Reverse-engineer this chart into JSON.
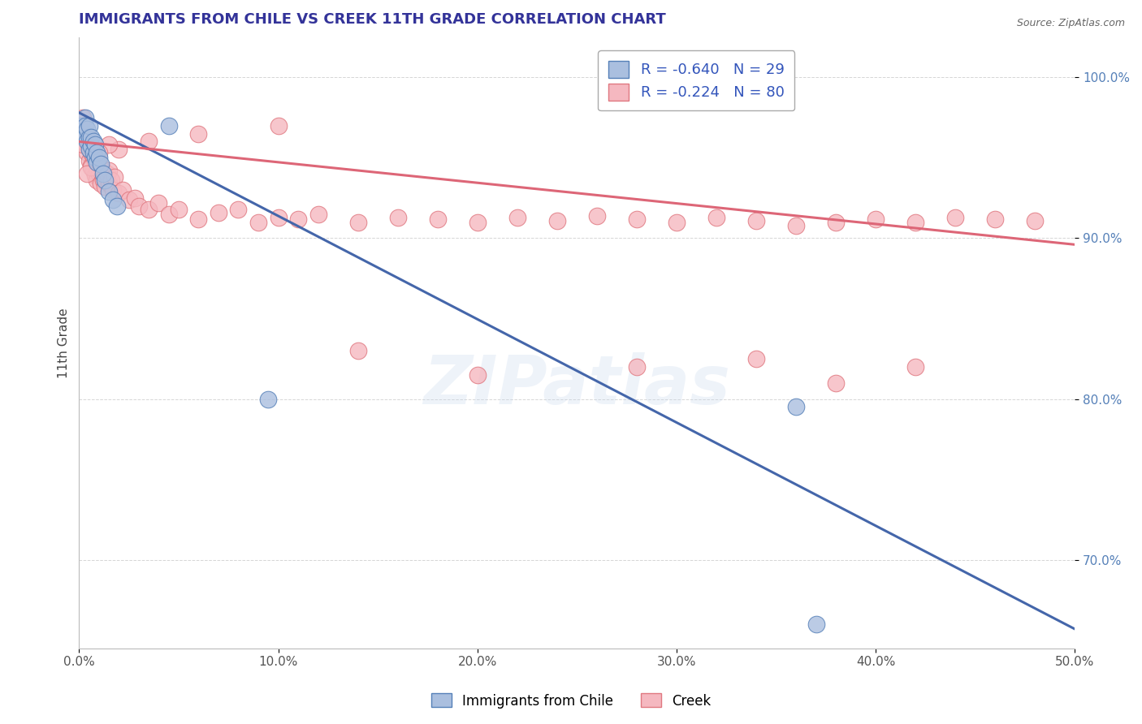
{
  "title": "IMMIGRANTS FROM CHILE VS CREEK 11TH GRADE CORRELATION CHART",
  "source_text": "Source: ZipAtlas.com",
  "ylabel": "11th Grade",
  "xlim": [
    0.0,
    0.5
  ],
  "ylim": [
    0.645,
    1.025
  ],
  "xticks": [
    0.0,
    0.1,
    0.2,
    0.3,
    0.4,
    0.5
  ],
  "xticklabels": [
    "0.0%",
    "10.0%",
    "20.0%",
    "30.0%",
    "40.0%",
    "50.0%"
  ],
  "yticks": [
    0.7,
    0.8,
    0.9,
    1.0
  ],
  "yticklabels": [
    "70.0%",
    "80.0%",
    "90.0%",
    "100.0%"
  ],
  "legend_r_blue": "-0.640",
  "legend_n_blue": "29",
  "legend_r_pink": "-0.224",
  "legend_n_pink": "80",
  "blue_fill": "#AABFDF",
  "blue_edge": "#5580B8",
  "pink_fill": "#F5B8C0",
  "pink_edge": "#E07880",
  "blue_line_color": "#4466AA",
  "pink_line_color": "#DD6677",
  "yaxis_label_color": "#5580B8",
  "watermark": "ZIPatlas",
  "blue_line_x0": 0.0,
  "blue_line_y0": 0.978,
  "blue_line_x1": 0.5,
  "blue_line_y1": 0.657,
  "pink_line_x0": 0.0,
  "pink_line_y0": 0.96,
  "pink_line_x1": 0.5,
  "pink_line_y1": 0.896,
  "blue_scatter_x": [
    0.001,
    0.002,
    0.003,
    0.003,
    0.003,
    0.004,
    0.004,
    0.005,
    0.005,
    0.005,
    0.006,
    0.006,
    0.007,
    0.007,
    0.008,
    0.008,
    0.009,
    0.009,
    0.01,
    0.011,
    0.012,
    0.013,
    0.015,
    0.017,
    0.019,
    0.045,
    0.095,
    0.36,
    0.37
  ],
  "blue_scatter_y": [
    0.97,
    0.965,
    0.975,
    0.963,
    0.97,
    0.96,
    0.968,
    0.955,
    0.963,
    0.97,
    0.957,
    0.963,
    0.953,
    0.96,
    0.95,
    0.958,
    0.947,
    0.953,
    0.95,
    0.946,
    0.94,
    0.936,
    0.929,
    0.924,
    0.92,
    0.97,
    0.8,
    0.795,
    0.66
  ],
  "pink_scatter_x": [
    0.001,
    0.002,
    0.002,
    0.003,
    0.003,
    0.004,
    0.004,
    0.005,
    0.005,
    0.006,
    0.006,
    0.007,
    0.007,
    0.008,
    0.008,
    0.009,
    0.009,
    0.01,
    0.01,
    0.011,
    0.011,
    0.012,
    0.012,
    0.013,
    0.014,
    0.015,
    0.015,
    0.016,
    0.017,
    0.018,
    0.02,
    0.022,
    0.025,
    0.028,
    0.03,
    0.035,
    0.04,
    0.045,
    0.05,
    0.06,
    0.07,
    0.08,
    0.09,
    0.1,
    0.11,
    0.12,
    0.14,
    0.16,
    0.18,
    0.2,
    0.22,
    0.24,
    0.26,
    0.28,
    0.3,
    0.32,
    0.34,
    0.36,
    0.38,
    0.4,
    0.42,
    0.44,
    0.46,
    0.48,
    0.14,
    0.2,
    0.28,
    0.34,
    0.38,
    0.42,
    0.1,
    0.06,
    0.035,
    0.02,
    0.015,
    0.01,
    0.008,
    0.006,
    0.004,
    0.002
  ],
  "pink_scatter_y": [
    0.968,
    0.963,
    0.975,
    0.958,
    0.966,
    0.953,
    0.961,
    0.948,
    0.956,
    0.945,
    0.953,
    0.942,
    0.95,
    0.939,
    0.948,
    0.936,
    0.943,
    0.94,
    0.947,
    0.934,
    0.941,
    0.936,
    0.942,
    0.932,
    0.94,
    0.934,
    0.942,
    0.936,
    0.93,
    0.938,
    0.928,
    0.93,
    0.924,
    0.925,
    0.92,
    0.918,
    0.922,
    0.915,
    0.918,
    0.912,
    0.916,
    0.918,
    0.91,
    0.913,
    0.912,
    0.915,
    0.91,
    0.913,
    0.912,
    0.91,
    0.913,
    0.911,
    0.914,
    0.912,
    0.91,
    0.913,
    0.911,
    0.908,
    0.91,
    0.912,
    0.91,
    0.913,
    0.912,
    0.911,
    0.83,
    0.815,
    0.82,
    0.825,
    0.81,
    0.82,
    0.97,
    0.965,
    0.96,
    0.955,
    0.958,
    0.953,
    0.948,
    0.944,
    0.94,
    0.958
  ]
}
